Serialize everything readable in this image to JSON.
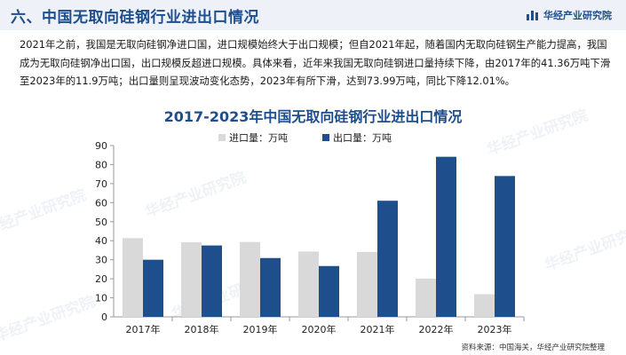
{
  "header": {
    "title": "六、中国无取向硅钢行业进出口情况",
    "brand": "华经产业研究院"
  },
  "intro": "2021年之前，我国是无取向硅钢净进口国，进口规模始终大于出口规模；但自2021年起，随着国内无取向硅钢生产能力提高，我国成为无取向硅钢净出口国，出口规模反超进口规模。具体来看，近年来我国无取向硅钢进口量持续下降，由2017年的41.36万吨下滑至2023年的11.9万吨；出口量则呈现波动变化态势，2023年有所下滑，达到73.99万吨，同比下降12.01%。",
  "source": "资料来源：中国海关，华经产业研究院整理",
  "watermark": "华经产业研究院",
  "chart_data": {
    "type": "bar",
    "title": "2017-2023年中国无取向硅钢行业进出口情况",
    "categories": [
      "2017年",
      "2018年",
      "2019年",
      "2020年",
      "2021年",
      "2022年",
      "2023年"
    ],
    "series": [
      {
        "name": "进口量：万吨",
        "color": "#d9d9d9",
        "values": [
          41.36,
          39.2,
          39.3,
          34.3,
          34.1,
          20.1,
          11.9
        ]
      },
      {
        "name": "出口量：万吨",
        "color": "#1f4e8c",
        "values": [
          30.0,
          37.5,
          30.9,
          26.7,
          61.0,
          84.1,
          73.99
        ]
      }
    ],
    "yticks": [
      0,
      10,
      20,
      30,
      40,
      50,
      60,
      70,
      80,
      90
    ],
    "ylim": [
      0,
      90
    ],
    "grid": false,
    "legend": "top"
  }
}
